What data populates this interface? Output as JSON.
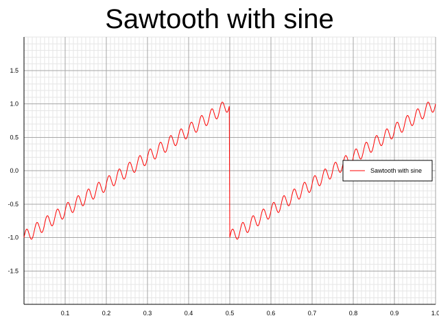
{
  "chart_data": {
    "type": "line",
    "title": "Sawtooth with sine",
    "xlabel": "",
    "ylabel": "",
    "xlim": [
      0,
      1
    ],
    "ylim": [
      -2,
      2
    ],
    "x_ticks": [
      0.1,
      0.2,
      0.3,
      0.4,
      0.5,
      0.6,
      0.7,
      0.8,
      0.9,
      1.0
    ],
    "x_tick_labels": [
      "0.1",
      "0.2",
      "0.3",
      "0.4",
      "0.5",
      "0.6",
      "0.7",
      "0.8",
      "0.9",
      "1.0"
    ],
    "y_ticks": [
      1.5,
      1.0,
      0.5,
      0.0,
      -0.5,
      -1.0,
      -1.5
    ],
    "y_tick_labels": [
      "1.5",
      "1.0",
      "0.5",
      "0.0",
      "-0.5",
      "-1.0",
      "-1.5"
    ],
    "grid": true,
    "minor_grid": true,
    "legend_position": "right",
    "series": [
      {
        "name": "Sawtooth with sine",
        "color": "#ff0000",
        "function": "sawtooth(period 0.5, amplitude 1) + sine(amplitude 0.1, 40 cycles)",
        "sawtooth_period": 0.5,
        "sawtooth_amplitude": 1.0,
        "sine_amplitude": 0.1,
        "sine_cycles": 40,
        "x_start": 0,
        "x_end": 1,
        "samples": 801
      }
    ]
  }
}
